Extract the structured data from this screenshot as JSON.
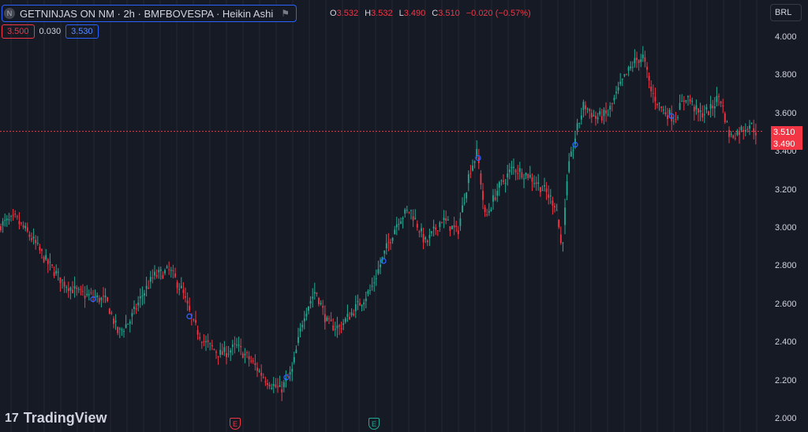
{
  "header": {
    "badge": "N",
    "title": "GETNINJAS ON NM · 2h · BMFBOVESPA · Heikin Ashi",
    "flag_icon": "flag-icon"
  },
  "ohlc": {
    "o_label": "O",
    "o_value": "3.532",
    "h_label": "H",
    "h_value": "3.532",
    "l_label": "L",
    "l_value": "3.490",
    "c_label": "C",
    "c_value": "3.510",
    "change": "−0.020 (−0.57%)"
  },
  "bidask": {
    "bid": "3.500",
    "spread": "0.030",
    "ask": "3.530"
  },
  "currency": "BRL",
  "price_tags": {
    "upper": "3.510",
    "lower": "3.490"
  },
  "logo": {
    "mark": "17",
    "text": "TradingView"
  },
  "earnings": [
    {
      "label": "E",
      "color": "#f23645"
    },
    {
      "label": "E",
      "color": "#22ab94"
    }
  ],
  "colors": {
    "up": "#22ab94",
    "down": "#f23645",
    "grid": "#242833",
    "marker": "#2962ff"
  },
  "chart_data": {
    "type": "candlestick",
    "ylim": [
      2.0,
      4.0
    ],
    "y_ticks": [
      "4.000",
      "3.800",
      "3.600",
      "3.400",
      "3.200",
      "3.000",
      "2.800",
      "2.600",
      "2.400",
      "2.200",
      "2.000"
    ],
    "last_price": 3.51,
    "path_points": [
      [
        0,
        3.02
      ],
      [
        20,
        3.05
      ],
      [
        40,
        2.95
      ],
      [
        60,
        2.82
      ],
      [
        80,
        2.72
      ],
      [
        100,
        2.66
      ],
      [
        120,
        2.64
      ],
      [
        135,
        2.62
      ],
      [
        150,
        2.45
      ],
      [
        165,
        2.52
      ],
      [
        180,
        2.65
      ],
      [
        195,
        2.75
      ],
      [
        215,
        2.78
      ],
      [
        230,
        2.68
      ],
      [
        245,
        2.5
      ],
      [
        260,
        2.4
      ],
      [
        280,
        2.34
      ],
      [
        300,
        2.38
      ],
      [
        315,
        2.32
      ],
      [
        335,
        2.22
      ],
      [
        355,
        2.15
      ],
      [
        370,
        2.25
      ],
      [
        385,
        2.55
      ],
      [
        400,
        2.68
      ],
      [
        415,
        2.5
      ],
      [
        430,
        2.48
      ],
      [
        450,
        2.58
      ],
      [
        470,
        2.68
      ],
      [
        490,
        2.9
      ],
      [
        505,
        3.05
      ],
      [
        520,
        3.1
      ],
      [
        540,
        2.92
      ],
      [
        560,
        3.05
      ],
      [
        580,
        2.98
      ],
      [
        595,
        3.3
      ],
      [
        605,
        3.4
      ],
      [
        615,
        3.05
      ],
      [
        630,
        3.2
      ],
      [
        650,
        3.32
      ],
      [
        670,
        3.28
      ],
      [
        690,
        3.2
      ],
      [
        705,
        3.12
      ],
      [
        712,
        2.88
      ],
      [
        720,
        3.3
      ],
      [
        730,
        3.5
      ],
      [
        740,
        3.65
      ],
      [
        755,
        3.58
      ],
      [
        770,
        3.6
      ],
      [
        790,
        3.78
      ],
      [
        805,
        3.88
      ],
      [
        815,
        3.9
      ],
      [
        825,
        3.72
      ],
      [
        840,
        3.62
      ],
      [
        855,
        3.58
      ],
      [
        870,
        3.7
      ],
      [
        885,
        3.6
      ],
      [
        900,
        3.62
      ],
      [
        912,
        3.7
      ],
      [
        925,
        3.48
      ],
      [
        940,
        3.52
      ],
      [
        950,
        3.55
      ],
      [
        958,
        3.51
      ]
    ],
    "markers": [
      [
        118,
        2.63
      ],
      [
        240,
        2.54
      ],
      [
        363,
        2.22
      ],
      [
        486,
        2.83
      ],
      [
        606,
        3.37
      ],
      [
        729,
        3.44
      ],
      [
        851,
        3.59
      ]
    ],
    "earnings_x": [
      298,
      474
    ]
  }
}
